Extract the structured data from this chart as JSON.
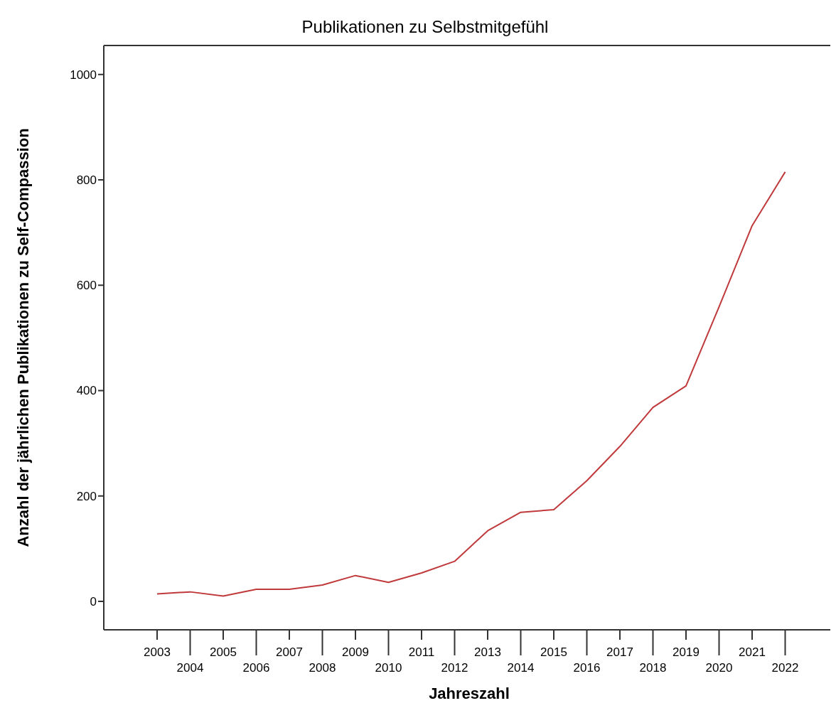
{
  "chart_data": {
    "type": "line",
    "title": "Publikationen zu Selbstmitgefühl",
    "xlabel": "Jahreszahl",
    "ylabel": "Anzahl der jährlichen Publikationen zu Self-Compassion",
    "categories": [
      "2003",
      "2004",
      "2005",
      "2006",
      "2007",
      "2008",
      "2009",
      "2010",
      "2011",
      "2012",
      "2013",
      "2014",
      "2015",
      "2016",
      "2017",
      "2018",
      "2019",
      "2020",
      "2021",
      "2022"
    ],
    "series": [
      {
        "color": "#c0393b",
        "values": [
          14,
          18,
          10,
          23,
          23,
          31,
          49,
          36,
          54,
          76,
          134,
          169,
          174,
          229,
          294,
          368,
          409,
          559,
          713,
          815
        ]
      }
    ],
    "ylim": [
      -54,
      1055
    ],
    "yticks": [
      0,
      200,
      400,
      600,
      800,
      1000
    ],
    "grid": false,
    "marker": "none",
    "line_style": "solid"
  }
}
